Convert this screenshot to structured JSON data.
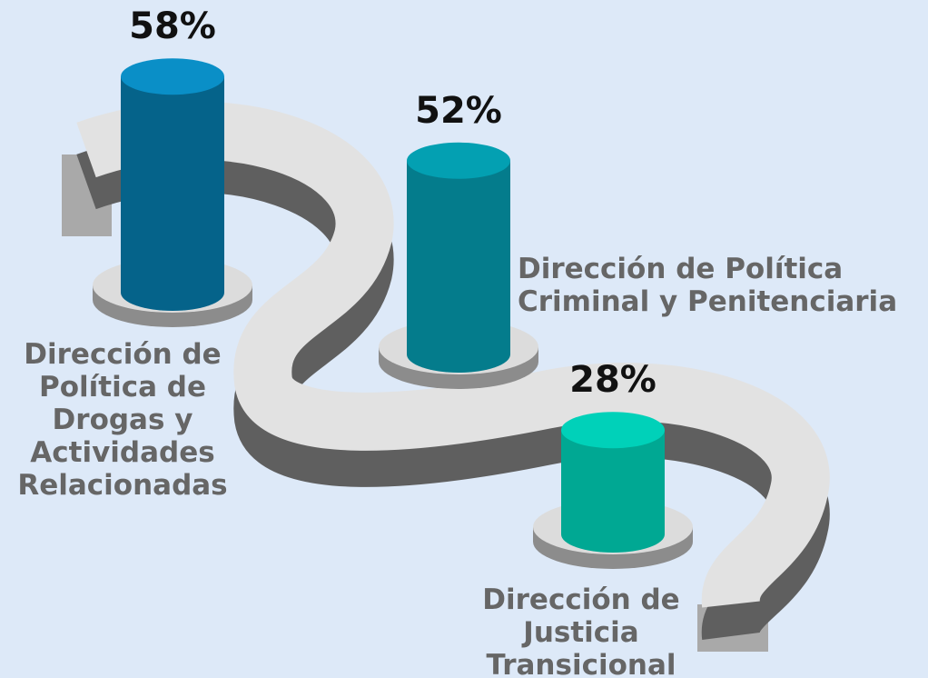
{
  "chart_data": {
    "type": "bar",
    "categories": [
      "Dirección de Política de Drogas y Actividades Relacionadas",
      "Dirección de Política Criminal y Penitenciaria",
      "Dirección de Justicia Transicional"
    ],
    "values": [
      58,
      52,
      28
    ],
    "value_labels": [
      "58%",
      "52%",
      "28%"
    ],
    "colors": [
      "#05638a",
      "#047c8c",
      "#00a893"
    ],
    "top_colors": [
      "#0a8fc7",
      "#03a0b2",
      "#00d1b9"
    ]
  }
}
